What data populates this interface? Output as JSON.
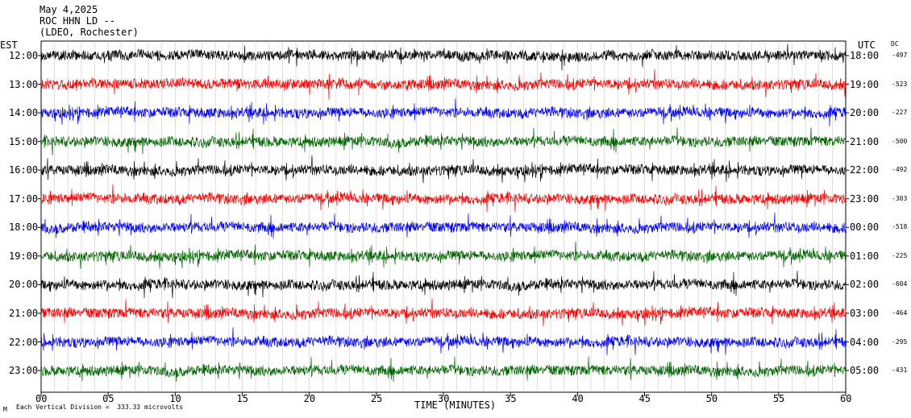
{
  "header": {
    "date": "May 4,2025",
    "station": "ROC HHN LD --",
    "network": "(LDEO, Rochester)"
  },
  "left_axis_title": "EST",
  "right_axis_title": "UTC",
  "dc_title": "DC",
  "footer": {
    "scale_text": "Each Vertical Division =  333.33 microvolts",
    "corner_mark": "M"
  },
  "chart_data": {
    "type": "line",
    "title": "May 4,2025 ROC HHN LD -- (LDEO, Rochester)",
    "xlabel": "TIME (MINUTES)",
    "xlim": [
      0,
      60
    ],
    "x_ticks": [
      "00",
      "05",
      "10",
      "15",
      "20",
      "25",
      "30",
      "35",
      "40",
      "45",
      "50",
      "55",
      "60"
    ],
    "grid": true,
    "trace_colors": [
      "#000000",
      "#ff0000",
      "#0000ff",
      "#006400"
    ],
    "traces": [
      {
        "est": "12:00",
        "utc": "18:00",
        "dc": "-497"
      },
      {
        "est": "13:00",
        "utc": "19:00",
        "dc": "-523"
      },
      {
        "est": "14:00",
        "utc": "20:00",
        "dc": "-227"
      },
      {
        "est": "15:00",
        "utc": "21:00",
        "dc": "-500"
      },
      {
        "est": "16:00",
        "utc": "22:00",
        "dc": "-492"
      },
      {
        "est": "17:00",
        "utc": "23:00",
        "dc": "-303"
      },
      {
        "est": "18:00",
        "utc": "00:00",
        "dc": "-518"
      },
      {
        "est": "19:00",
        "utc": "01:00",
        "dc": "-225"
      },
      {
        "est": "20:00",
        "utc": "02:00",
        "dc": "-604"
      },
      {
        "est": "21:00",
        "utc": "03:00",
        "dc": "-464"
      },
      {
        "est": "22:00",
        "utc": "04:00",
        "dc": "-295"
      },
      {
        "est": "23:00",
        "utc": "05:00",
        "dc": "-431"
      }
    ]
  }
}
